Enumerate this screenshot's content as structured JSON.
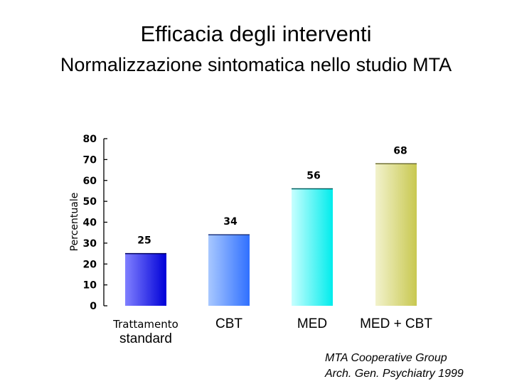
{
  "title": "Efficacia degli interventi",
  "subtitle": "Normalizzazione sintomatica nello studio MTA",
  "citation": {
    "line1": "MTA Cooperative Group",
    "line2": "Arch. Gen. Psychiatry 1999"
  },
  "chart_data": {
    "type": "bar",
    "categories": [
      "Trattamento standard",
      "CBT",
      "MED",
      "MED + CBT"
    ],
    "category_label_lines": [
      [
        "Trattamento",
        "standard"
      ],
      [
        "CBT"
      ],
      [
        "MED"
      ],
      [
        "MED + CBT"
      ]
    ],
    "values": [
      25,
      34,
      56,
      68
    ],
    "ylabel": "Percentuale",
    "xlabel": "",
    "ylim": [
      0,
      80
    ],
    "yticks": [
      0,
      10,
      20,
      30,
      40,
      50,
      60,
      70,
      80
    ],
    "grid": false,
    "legend": "none",
    "bar_colors": [
      {
        "light": "#8080ff",
        "dark": "#0000d8",
        "edge": "#000060"
      },
      {
        "light": "#a8c8ff",
        "dark": "#3070ff",
        "edge": "#203880"
      },
      {
        "light": "#c8ffff",
        "dark": "#00ecec",
        "edge": "#006060"
      },
      {
        "light": "#f2f2cc",
        "dark": "#c8c850",
        "edge": "#707030"
      }
    ]
  }
}
